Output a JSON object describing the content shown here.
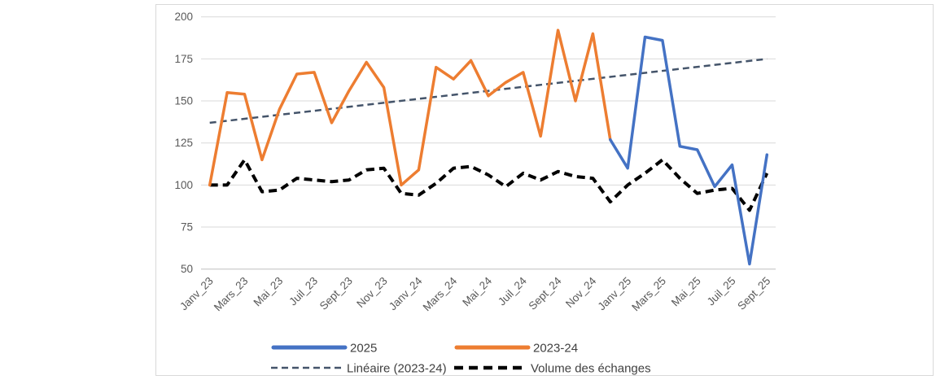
{
  "chart_data": {
    "type": "line",
    "title": "",
    "x_axis": {
      "months_total": 33,
      "label_every_n": 2,
      "tick_labels": [
        "Janv_23",
        "Mars_23",
        "Mai_23",
        "Juil_23",
        "Sept_23",
        "Nov_23",
        "Janv_24",
        "Mars_24",
        "Mai_24",
        "Juil_24",
        "Sept_24",
        "Nov_24",
        "Janv_25",
        "Mars_25",
        "Mai_25",
        "Juil_25",
        "Sept_25"
      ]
    },
    "y_axis": {
      "min": 50,
      "max": 200,
      "step": 25,
      "tick_labels": [
        "50",
        "75",
        "100",
        "125",
        "150",
        "175",
        "200"
      ]
    },
    "grid": "horizontal-only",
    "legend_position": "bottom",
    "series": [
      {
        "name": "2025",
        "color": "#4472C4",
        "style": "solid",
        "stroke_width": 3.5,
        "start_index": 23,
        "values": [
          127,
          110,
          188,
          186,
          123,
          121,
          99,
          112,
          53,
          118
        ]
      },
      {
        "name": "2023-24",
        "color": "#ED7D31",
        "style": "solid",
        "stroke_width": 3.5,
        "start_index": 0,
        "values": [
          100,
          155,
          154,
          115,
          145,
          166,
          167,
          137,
          156,
          173,
          158,
          100,
          109,
          170,
          163,
          174,
          153,
          161,
          167,
          129,
          192,
          150,
          190,
          127
        ]
      },
      {
        "name": "Linéaire (2023-24)",
        "color": "#44546A",
        "style": "dashed",
        "stroke_width": 2.5,
        "trend": {
          "start_index": 0,
          "end_index": 32,
          "start_value": 137,
          "end_value": 175
        }
      },
      {
        "name": "Volume des échanges",
        "color": "#000000",
        "style": "dashed-bold",
        "stroke_width": 4,
        "start_index": 0,
        "values": [
          100,
          100,
          115,
          96,
          97,
          104,
          103,
          102,
          103,
          109,
          110,
          95,
          94,
          101,
          110,
          111,
          106,
          99,
          107,
          103,
          108,
          105,
          104,
          90,
          100,
          107,
          115,
          104,
          95,
          97,
          98,
          85,
          107
        ]
      }
    ]
  },
  "colors": {
    "background": "#FFFFFF",
    "border": "#D9D9D9",
    "gridline": "#D9D9D9",
    "axis_line": "#BFBFBF",
    "tick_label": "#595959",
    "legend_text": "#404040"
  }
}
